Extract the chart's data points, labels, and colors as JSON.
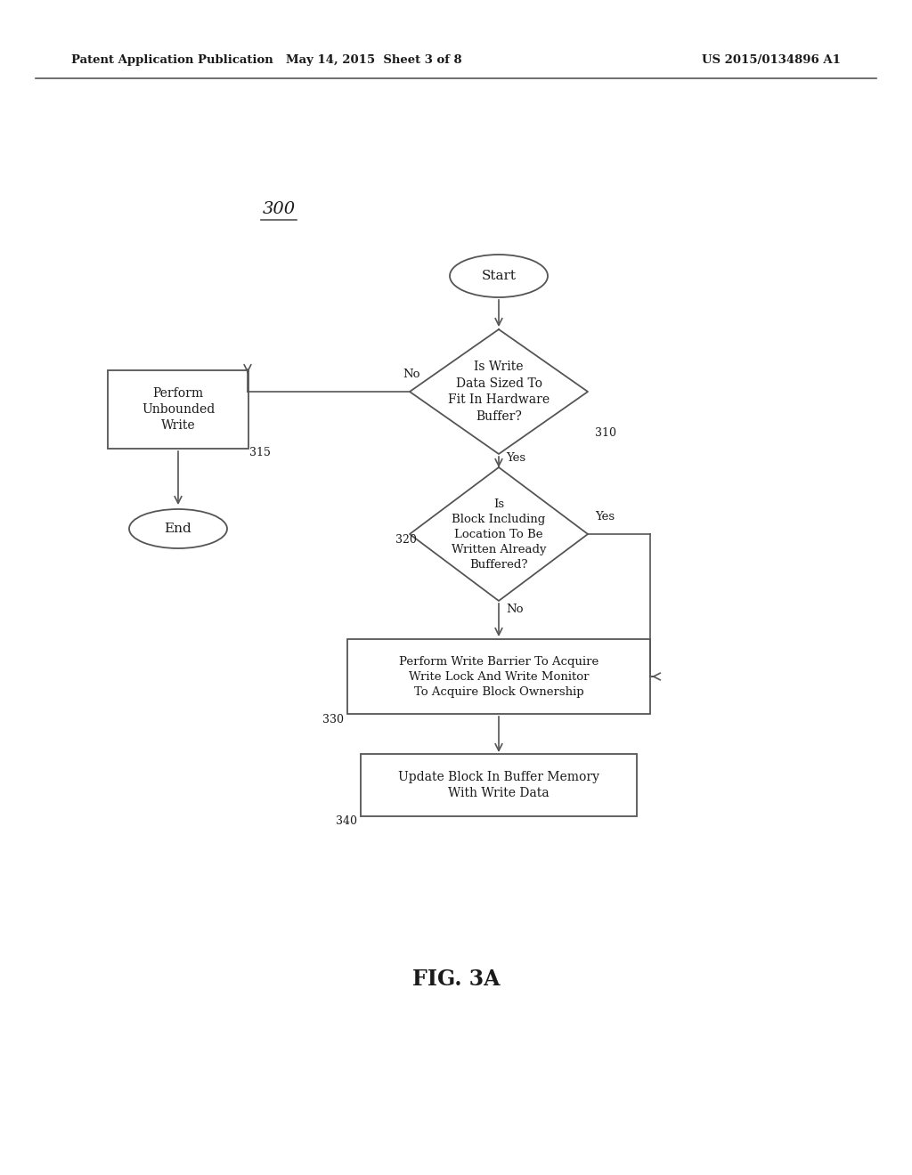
{
  "bg_color": "#ffffff",
  "header_left": "Patent Application Publication",
  "header_center": "May 14, 2015  Sheet 3 of 8",
  "header_right": "US 2015/0134896 A1",
  "fig_label": "FIG. 3A",
  "diagram_label": "300",
  "text_color": "#1a1a1a",
  "shape_edge_color": "#555555",
  "line_color": "#555555"
}
